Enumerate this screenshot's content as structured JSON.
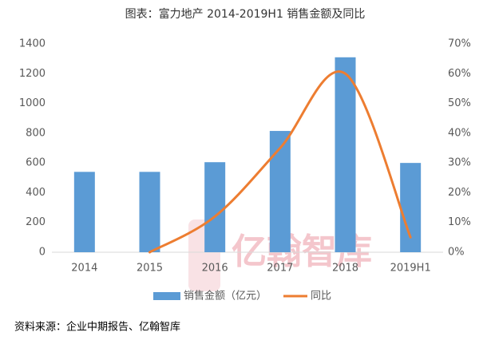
{
  "chart_data": {
    "type": "bar-line",
    "title": "图表：富力地产 2014-2019H1 销售金额及同比",
    "categories": [
      "2014",
      "2015",
      "2016",
      "2017",
      "2018",
      "2019H1"
    ],
    "series": [
      {
        "name": "销售金额（亿元）",
        "type": "bar",
        "color": "#5b9bd5",
        "values": [
          540,
          540,
          605,
          815,
          1310,
          600
        ]
      },
      {
        "name": "同比",
        "type": "line",
        "axis": "y2",
        "smooth": true,
        "color": "#ed7d31",
        "values": [
          null,
          0,
          12,
          35,
          60,
          5
        ]
      }
    ],
    "ylim": [
      0,
      1400
    ],
    "yticks": [
      0,
      200,
      400,
      600,
      800,
      1000,
      1200,
      1400
    ],
    "y2lim": [
      0,
      70
    ],
    "y2ticks": [
      {
        "value": 0,
        "label": "0%"
      },
      {
        "value": 10,
        "label": "10%"
      },
      {
        "value": 20,
        "label": "20%"
      },
      {
        "value": 30,
        "label": "30%"
      },
      {
        "value": 40,
        "label": "40%"
      },
      {
        "value": 50,
        "label": "50%"
      },
      {
        "value": 60,
        "label": "60%"
      },
      {
        "value": 70,
        "label": "70%"
      }
    ],
    "grid": false,
    "legend": "bottom"
  },
  "watermark": "亿翰智库",
  "source": "资料来源：企业中期报告、亿翰智库"
}
